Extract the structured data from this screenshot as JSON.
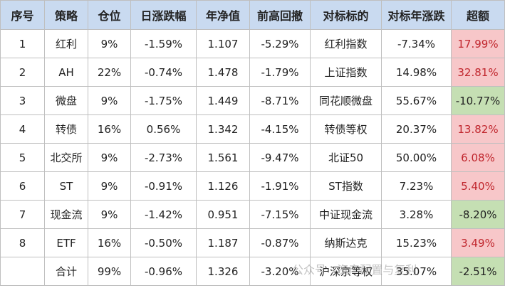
{
  "table": {
    "header": [
      "序号",
      "策略",
      "仓位",
      "日涨跌幅",
      "年净值",
      "前高回撤",
      "对标标的",
      "对标年涨跌",
      "超额"
    ],
    "rows": [
      [
        "1",
        "红利",
        "9%",
        "-1.59%",
        "1.107",
        "-5.29%",
        "红利指数",
        "-7.34%",
        "17.99%"
      ],
      [
        "2",
        "AH",
        "22%",
        "-0.74%",
        "1.478",
        "-1.79%",
        "上证指数",
        "14.98%",
        "32.81%"
      ],
      [
        "3",
        "微盘",
        "9%",
        "-1.75%",
        "1.449",
        "-8.71%",
        "同花顺微盘",
        "55.67%",
        "-10.77%"
      ],
      [
        "4",
        "转债",
        "16%",
        "0.56%",
        "1.342",
        "-4.15%",
        "转债等权",
        "20.37%",
        "13.82%"
      ],
      [
        "5",
        "北交所",
        "9%",
        "-2.73%",
        "1.561",
        "-9.47%",
        "北证50",
        "50.00%",
        "6.08%"
      ],
      [
        "6",
        "ST",
        "9%",
        "-0.91%",
        "1.126",
        "-1.91%",
        "ST指数",
        "7.23%",
        "5.40%"
      ],
      [
        "7",
        "现金流",
        "9%",
        "-1.42%",
        "0.951",
        "-7.15%",
        "中证现金流",
        "3.28%",
        "-8.20%"
      ],
      [
        "8",
        "ETF",
        "16%",
        "-0.50%",
        "1.187",
        "-0.87%",
        "纳斯达克",
        "15.23%",
        "3.49%"
      ],
      [
        null,
        "合计",
        "99%",
        "-0.96%",
        "1.326",
        "-3.20%",
        "沪深京等权",
        "35.07%",
        "-2.51%"
      ]
    ]
  },
  "watermark": "公众号 · 资产配置与复利"
}
